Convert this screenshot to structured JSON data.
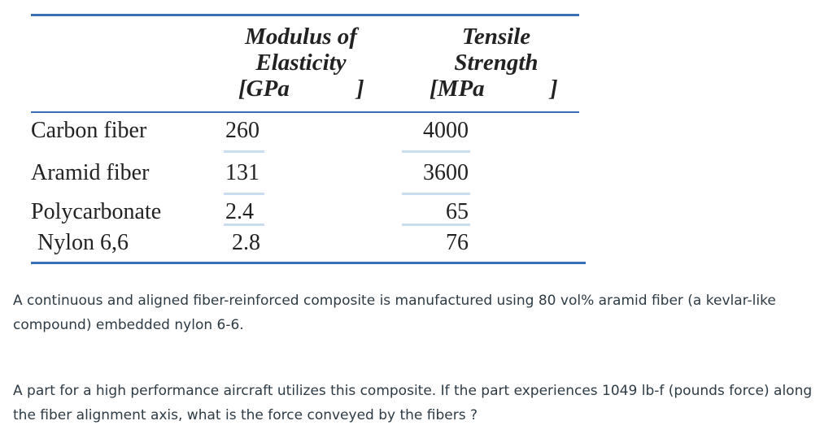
{
  "table": {
    "headers": [
      [
        "Modulus of",
        "Elasticity",
        "[GPa",
        "]"
      ],
      [
        "Tensile",
        "Strength",
        "[MPa",
        "]"
      ]
    ],
    "rows": [
      [
        "Carbon fiber",
        "260",
        "4000"
      ],
      [
        "Aramid fiber",
        "131",
        "3600"
      ],
      [
        "Polycarbonate",
        "2.4",
        "65"
      ],
      [
        "Nylon 6,6",
        "2.8",
        "76"
      ]
    ]
  },
  "paragraphs": [
    "A continuous and aligned fiber-reinforced composite is manufactured using 80 vol% aramid fiber (a kevlar-like compound) embedded nylon 6-6.",
    "A part for a high performance aircraft utilizes this composite. If the part experiences 1049 lb-f (pounds force) along the fiber alignment axis, what is the force conveyed by the fibers ?"
  ]
}
